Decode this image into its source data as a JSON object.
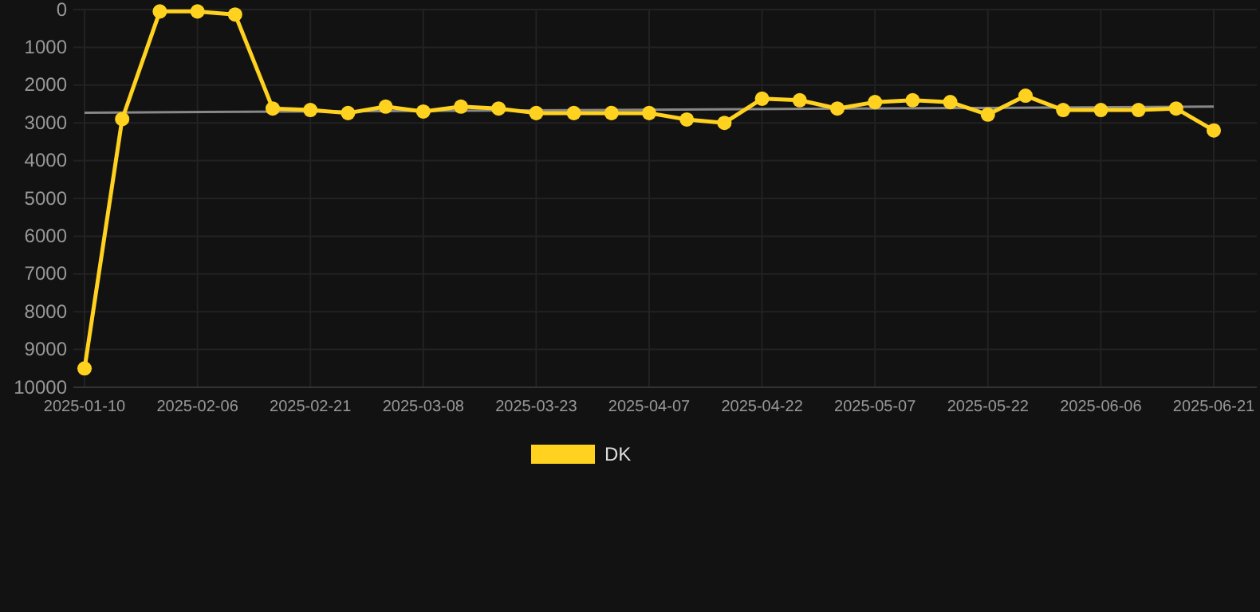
{
  "chart_data": {
    "type": "line",
    "categories": [
      "2025-01-10",
      null,
      null,
      "2025-02-06",
      null,
      null,
      "2025-02-21",
      null,
      null,
      "2025-03-08",
      null,
      null,
      "2025-03-23",
      null,
      null,
      "2025-04-07",
      null,
      null,
      "2025-04-22",
      null,
      null,
      "2025-05-07",
      null,
      null,
      "2025-05-22",
      null,
      null,
      "2025-06-06",
      null,
      null,
      "2025-06-21"
    ],
    "series": [
      {
        "name": "DK",
        "color": "#ffd21f",
        "values": [
          9500,
          2900,
          50,
          50,
          130,
          2620,
          2660,
          2740,
          2570,
          2700,
          2570,
          2620,
          2740,
          2740,
          2740,
          2740,
          2910,
          3000,
          2360,
          2400,
          2620,
          2450,
          2400,
          2450,
          2780,
          2280,
          2660,
          2660,
          2660,
          2620,
          3200
        ]
      },
      {
        "color": "#888888",
        "marker": "none",
        "values": [
          2730,
          null,
          null,
          null,
          null,
          null,
          null,
          null,
          null,
          null,
          null,
          null,
          null,
          null,
          null,
          null,
          null,
          null,
          null,
          null,
          null,
          null,
          null,
          null,
          null,
          null,
          null,
          null,
          null,
          null,
          2570
        ]
      }
    ],
    "ylim": [
      10000,
      0
    ],
    "yticks": [
      0,
      1000,
      2000,
      3000,
      4000,
      5000,
      6000,
      7000,
      8000,
      9000,
      10000
    ],
    "grid": true,
    "legend": "bottom",
    "marker": "circle"
  }
}
